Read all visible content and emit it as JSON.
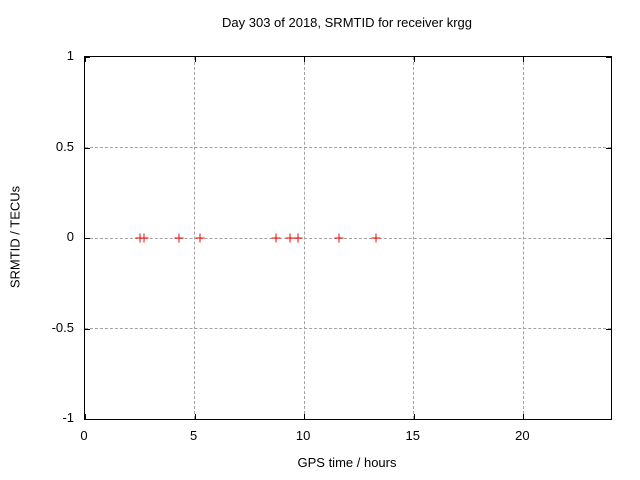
{
  "page": {
    "background": "#ffffff"
  },
  "chart_data": {
    "type": "scatter",
    "title": "Day 303 of 2018, SRMTID for receiver krgg",
    "xlabel": "GPS time / hours",
    "ylabel": "SRMTID / TECUs",
    "xlim": [
      0,
      24
    ],
    "ylim": [
      -1,
      1
    ],
    "xticks": [
      0,
      5,
      10,
      15,
      20
    ],
    "xtick_labels": [
      "0",
      "5",
      "10",
      "15",
      "20"
    ],
    "yticks": [
      1,
      0.5,
      0,
      -0.5,
      -1
    ],
    "ytick_labels": [
      "1",
      "0.5",
      "0",
      "-0.5",
      "-1"
    ],
    "grid": true,
    "legend": "none",
    "marker": "plus",
    "marker_color": "#ff0000",
    "grid_color": "#a3a3a3",
    "axis_color": "#000000",
    "series": [
      {
        "x": [
          2.5,
          2.68,
          4.3,
          5.26,
          8.72,
          9.35,
          9.74,
          11.6,
          13.26
        ],
        "y": [
          0,
          0,
          0,
          0,
          0,
          0,
          0,
          0,
          0
        ]
      }
    ]
  }
}
